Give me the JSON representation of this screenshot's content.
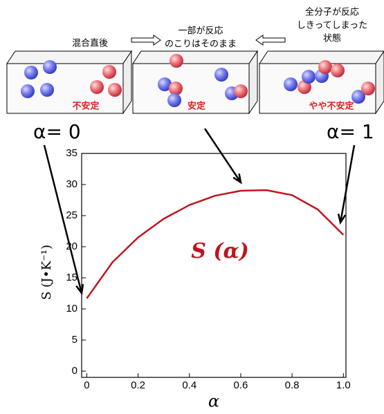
{
  "chart_data": {
    "type": "line",
    "x": [
      0,
      0.1,
      0.2,
      0.3,
      0.4,
      0.5,
      0.6,
      0.7,
      0.8,
      0.9,
      1.0
    ],
    "series": [
      {
        "name": "S (α)",
        "color": "#c0141c",
        "values": [
          11.7,
          17.5,
          21.5,
          24.5,
          26.7,
          28.2,
          29.0,
          29.1,
          28.3,
          26.0,
          21.9
        ]
      }
    ],
    "xlim": [
      -0.02,
      1.01
    ],
    "xticks": [
      0,
      0.2,
      0.4,
      0.6,
      0.8,
      {
        "value": 1.0,
        "label": "1.0"
      }
    ],
    "ylim": [
      -1,
      35
    ],
    "yticks": [
      0,
      5,
      10,
      15,
      20,
      25,
      30,
      35
    ],
    "x_label": "α",
    "y_label": "S (J•K⁻¹)",
    "annotations": {
      "alpha0": "α= 0",
      "alpha1": "α= 1"
    },
    "stages": [
      {
        "caption": [
          "混合直後"
        ],
        "state": "不安定"
      },
      {
        "caption": [
          "一部が反応",
          "のこりはそのまま"
        ],
        "state": "安定"
      },
      {
        "caption": [
          "全分子が反応",
          "しきってしまった",
          "状態"
        ],
        "state": "やや不安定"
      }
    ]
  }
}
